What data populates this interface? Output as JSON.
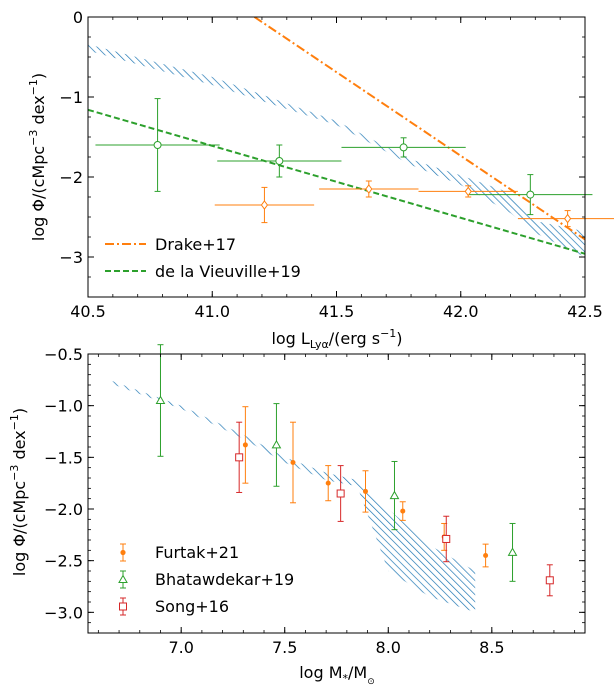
{
  "chart_data": [
    {
      "type": "scatter",
      "panel": "top",
      "xlabel_main": "log L",
      "xlabel_sub": "Lyα",
      "xlabel_rest": "/(erg s",
      "xlabel_sup": "−1",
      "xlabel_end": ")",
      "ylabel_main": "log Φ/(cMpc",
      "ylabel_sup1": "−3",
      "ylabel_mid": " dex",
      "ylabel_sup2": "−1",
      "ylabel_end": ")",
      "xlim": [
        40.5,
        42.5
      ],
      "ylim": [
        -3.5,
        0
      ],
      "xticks": [
        40.5,
        41.0,
        41.5,
        42.0,
        42.5
      ],
      "xtick_labels": [
        "40.5",
        "41.0",
        "41.5",
        "42.0",
        "42.5"
      ],
      "yticks": [
        0,
        -1,
        -2,
        -3
      ],
      "ytick_labels": [
        "0",
        "−1",
        "−2",
        "−3"
      ],
      "legend": {
        "placement": "lower-left",
        "entries": [
          {
            "label": "Drake+17",
            "color": "#ff7f0e",
            "style": "dashdot"
          },
          {
            "label": "de la Vieuville+19",
            "color": "#2ca02c",
            "style": "dashed"
          }
        ]
      },
      "lines": [
        {
          "name": "Drake+17",
          "color": "#ff7f0e",
          "style": "dashdot",
          "x": [
            41.17,
            42.5
          ],
          "y": [
            0.0,
            -2.78
          ]
        },
        {
          "name": "de la Vieuville+19",
          "color": "#2ca02c",
          "style": "dashed",
          "x": [
            40.5,
            42.5
          ],
          "y": [
            -1.16,
            -2.96
          ]
        }
      ],
      "band": {
        "color": "#1f77b4",
        "x": [
          40.5,
          41.0,
          41.5,
          41.8,
          42.0,
          42.2,
          42.3,
          42.5
        ],
        "upper": [
          -0.34,
          -0.75,
          -1.3,
          -1.78,
          -1.98,
          -2.2,
          -2.55,
          -2.68
        ],
        "lower": [
          -0.42,
          -0.85,
          -1.35,
          -1.85,
          -2.1,
          -2.45,
          -2.7,
          -3.0
        ]
      },
      "series": [
        {
          "name": "green points",
          "color": "#2ca02c",
          "marker": "circle-open",
          "x": [
            40.78,
            41.27,
            41.77,
            42.28
          ],
          "y": [
            -1.6,
            -1.8,
            -1.63,
            -2.22
          ],
          "xerr": [
            0.25,
            0.25,
            0.25,
            0.25
          ],
          "yerr": [
            0.58,
            0.2,
            0.12,
            0.25
          ]
        },
        {
          "name": "orange points",
          "color": "#ff7f0e",
          "marker": "diamond-open",
          "x": [
            41.21,
            41.63,
            42.03,
            42.43
          ],
          "y": [
            -2.35,
            -2.15,
            -2.18,
            -2.52
          ],
          "xerr": [
            0.2,
            0.2,
            0.2,
            0.2
          ],
          "yerr": [
            0.22,
            0.1,
            0.07,
            0.1
          ]
        }
      ]
    },
    {
      "type": "scatter",
      "panel": "bottom",
      "xlabel_main": "log M",
      "xlabel_sub": "*",
      "xlabel_rest": "/M",
      "xlabel_sub2": "⊙",
      "ylabel_main": "log Φ/(cMpc",
      "ylabel_sup1": "−3",
      "ylabel_mid": " dex",
      "ylabel_sup2": "−1",
      "ylabel_end": ")",
      "xlim": [
        6.55,
        8.95
      ],
      "ylim": [
        -3.2,
        -0.5
      ],
      "xticks": [
        7.0,
        7.5,
        8.0,
        8.5
      ],
      "xtick_labels": [
        "7.0",
        "7.5",
        "8.0",
        "8.5"
      ],
      "yticks": [
        -0.5,
        -1.0,
        -1.5,
        -2.0,
        -2.5,
        -3.0
      ],
      "ytick_labels": [
        "−0.5",
        "−1.0",
        "−1.5",
        "−2.0",
        "−2.5",
        "−3.0"
      ],
      "legend": {
        "placement": "lower-left",
        "entries": [
          {
            "label": "Furtak+21",
            "color": "#ff7f0e",
            "marker": "dot"
          },
          {
            "label": "Bhatawdekar+19",
            "color": "#2ca02c",
            "marker": "triangle-open"
          },
          {
            "label": "Song+16",
            "color": "#d62728",
            "marker": "square-open"
          }
        ]
      },
      "band": {
        "color": "#1f77b4",
        "x": [
          6.65,
          7.0,
          7.3,
          7.5,
          7.7,
          7.85,
          8.0,
          8.2,
          8.42
        ],
        "upper": [
          -0.75,
          -1.0,
          -1.28,
          -1.5,
          -1.65,
          -1.72,
          -2.0,
          -2.35,
          -2.6
        ],
        "lower": [
          -0.78,
          -1.03,
          -1.32,
          -1.55,
          -1.72,
          -1.78,
          -2.6,
          -2.85,
          -3.0
        ]
      },
      "series": [
        {
          "name": "Furtak+21",
          "color": "#ff7f0e",
          "marker": "dot",
          "x": [
            7.31,
            7.54,
            7.71,
            7.89,
            8.07,
            8.27,
            8.47
          ],
          "y": [
            -1.38,
            -1.55,
            -1.75,
            -1.83,
            -2.02,
            -2.27,
            -2.45
          ],
          "yerr": [
            0.37,
            0.39,
            0.17,
            0.2,
            0.09,
            0.13,
            0.11
          ]
        },
        {
          "name": "Bhatawdekar+19",
          "color": "#2ca02c",
          "marker": "triangle-open",
          "x": [
            6.9,
            7.46,
            8.03,
            8.6
          ],
          "y": [
            -0.95,
            -1.38,
            -1.87,
            -2.42
          ],
          "yerr": [
            0.54,
            0.4,
            0.33,
            0.28
          ]
        },
        {
          "name": "Song+16",
          "color": "#d62728",
          "marker": "square-open",
          "x": [
            7.28,
            7.77,
            8.28,
            8.78
          ],
          "y": [
            -1.5,
            -1.85,
            -2.29,
            -2.69
          ],
          "yerr": [
            0.34,
            0.27,
            0.22,
            0.15
          ]
        }
      ]
    }
  ]
}
